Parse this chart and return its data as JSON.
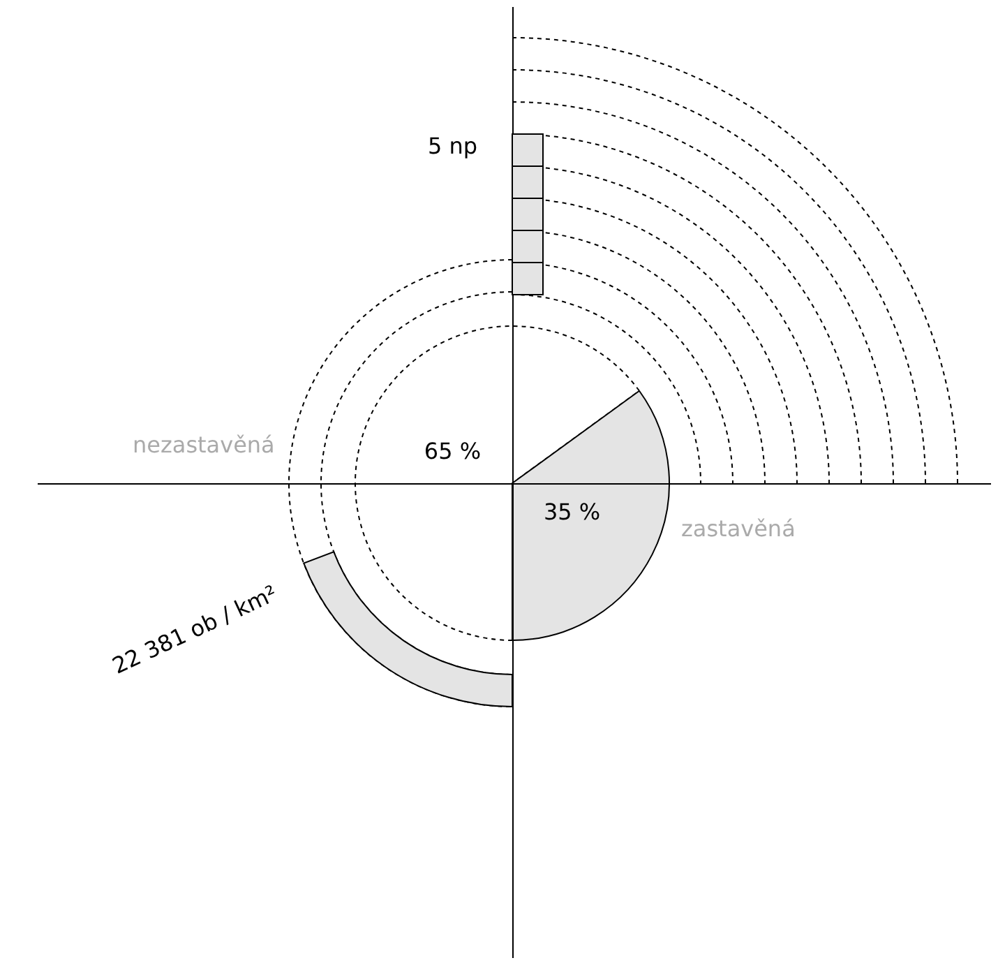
{
  "chart_data": {
    "type": "pie",
    "categories": [
      "nezastavěná",
      "zastavěná"
    ],
    "values": [
      65,
      35
    ],
    "colors": [
      "#ffffff",
      "#e4e4e4"
    ],
    "value_labels": [
      "65 %",
      "35 %"
    ],
    "annotations": [
      "5 np",
      "22 381 ob / km²"
    ]
  }
}
